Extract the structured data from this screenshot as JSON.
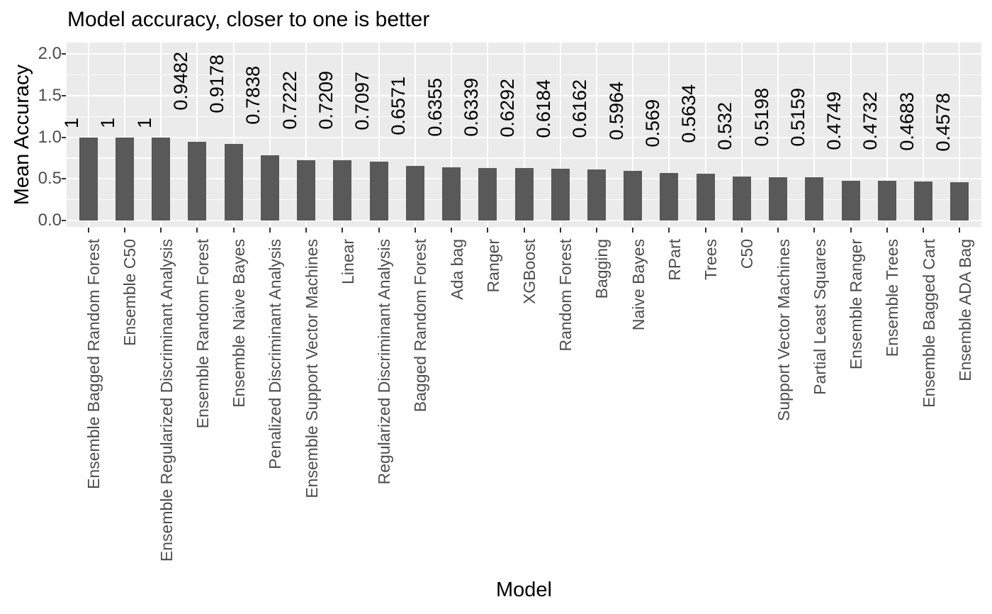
{
  "chart_data": {
    "type": "bar",
    "title": "Model accuracy, closer to one is better",
    "xlabel": "Model",
    "ylabel": "Mean Accuracy",
    "categories": [
      "Ensemble Bagged Random Forest",
      "Ensemble C50",
      "Ensemble Regularized Discriminant Analysis",
      "Ensemble Random Forest",
      "Ensemble Naive Bayes",
      "Penalized Discriminant Analysis",
      "Ensemble Support Vector Machines",
      "Linear",
      "Regularized Discriminant Analysis",
      "Bagged Random Forest",
      "Ada bag",
      "Ranger",
      "XGBoost",
      "Random Forest",
      "Bagging",
      "Naive Bayes",
      "RPart",
      "Trees",
      "C50",
      "Support Vector Machines",
      "Partial Least Squares",
      "Ensemble Ranger",
      "Ensemble Trees",
      "Ensemble Bagged Cart",
      "Ensemble ADA Bag"
    ],
    "values": [
      1,
      1,
      1,
      0.9482,
      0.9178,
      0.7838,
      0.7222,
      0.7209,
      0.7097,
      0.6571,
      0.6355,
      0.6339,
      0.6292,
      0.6184,
      0.6162,
      0.5964,
      0.569,
      0.5634,
      0.532,
      0.5198,
      0.5159,
      0.4749,
      0.4732,
      0.4683,
      0.4578
    ],
    "bar_labels": [
      "1",
      "1",
      "1",
      "0.9482",
      "0.9178",
      "0.7838",
      "0.7222",
      "0.7209",
      "0.7097",
      "0.6571",
      "0.6355",
      "0.6339",
      "0.6292",
      "0.6184",
      "0.6162",
      "0.5964",
      "0.569",
      "0.5634",
      "0.532",
      "0.5198",
      "0.5159",
      "0.4749",
      "0.4732",
      "0.4683",
      "0.4578"
    ],
    "ytick_values": [
      0.0,
      0.5,
      1.0,
      1.5,
      2.0
    ],
    "ytick_labels": [
      "0.0",
      "0.5",
      "1.0",
      "1.5",
      "2.0"
    ],
    "minor_gridline_values": [
      0.25,
      0.75,
      1.25,
      1.75
    ],
    "ylim": [
      0,
      2.07
    ],
    "grid": true,
    "legend": "none",
    "colors": {
      "bar": "#595959",
      "panel_background": "#EBEBEB",
      "gridline": "#FFFFFF",
      "axis_text": "#4D4D4D",
      "bar_label_text": "#000000",
      "tick_mark": "#333333"
    }
  }
}
